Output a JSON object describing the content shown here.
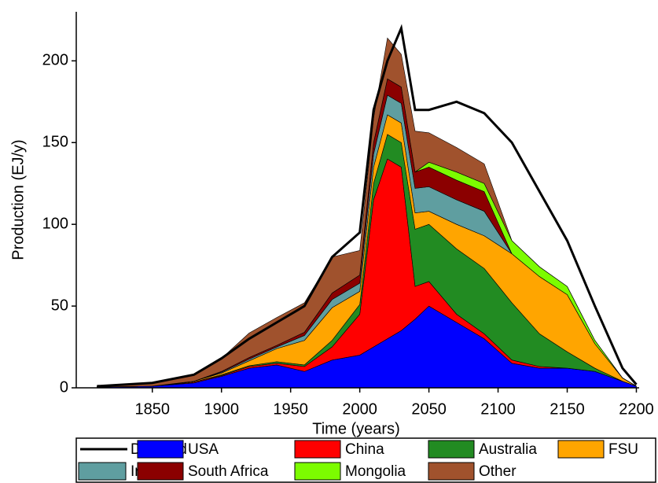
{
  "chart_data": {
    "type": "area",
    "stacked": true,
    "x_label": "Time (years)",
    "y_label": "Production (EJ/y)",
    "x": [
      1810,
      1850,
      1880,
      1900,
      1920,
      1940,
      1960,
      1980,
      2000,
      2010,
      2020,
      2030,
      2040,
      2050,
      2070,
      2090,
      2110,
      2130,
      2150,
      2170,
      2190,
      2200
    ],
    "xlim": [
      1795,
      2202
    ],
    "xticks": [
      1850,
      1900,
      1950,
      2000,
      2050,
      2100,
      2150,
      2200
    ],
    "ylim": [
      0,
      230
    ],
    "yticks": [
      0,
      50,
      100,
      150,
      200
    ],
    "series": [
      {
        "name": "Demand",
        "color": "#000000",
        "kind": "line",
        "values": [
          1,
          3,
          8,
          18,
          30,
          40,
          50,
          80,
          95,
          170,
          200,
          220,
          170,
          170,
          175,
          168,
          150,
          120,
          90,
          50,
          12,
          2
        ]
      },
      {
        "name": "USA",
        "color": "#0000ff",
        "values": [
          0.5,
          1,
          3,
          7,
          12,
          14,
          10,
          17,
          20,
          25,
          30,
          35,
          42,
          50,
          40,
          30,
          15,
          12,
          12,
          10,
          4,
          1
        ]
      },
      {
        "name": "China",
        "color": "#ff0000",
        "values": [
          0,
          0,
          0.5,
          0.5,
          1,
          1,
          3,
          8,
          25,
          90,
          110,
          100,
          20,
          15,
          5,
          3,
          2,
          1,
          0,
          0,
          0,
          0
        ]
      },
      {
        "name": "Australia",
        "color": "#228b22",
        "values": [
          0,
          0,
          0,
          0.5,
          0.5,
          1,
          1,
          4,
          6,
          10,
          15,
          15,
          35,
          35,
          40,
          40,
          35,
          20,
          10,
          2,
          0,
          0
        ]
      },
      {
        "name": "FSU",
        "color": "#ffa500",
        "values": [
          0,
          0,
          0.5,
          1,
          3,
          8,
          15,
          20,
          8,
          10,
          12,
          12,
          10,
          8,
          15,
          20,
          30,
          35,
          35,
          15,
          2,
          0
        ]
      },
      {
        "name": "India",
        "color": "#5f9ea0",
        "values": [
          0,
          0,
          0,
          0.5,
          1,
          1,
          3,
          5,
          5,
          8,
          12,
          12,
          15,
          15,
          15,
          15,
          0,
          0,
          0,
          0,
          0,
          0
        ]
      },
      {
        "name": "South Africa",
        "color": "#8b0000",
        "values": [
          0,
          0,
          0,
          0.5,
          1,
          1,
          2,
          4,
          5,
          7,
          10,
          10,
          10,
          12,
          12,
          12,
          0,
          0,
          0,
          0,
          0,
          0
        ]
      },
      {
        "name": "Mongolia",
        "color": "#7cfc00",
        "values": [
          0,
          0,
          0,
          0,
          0,
          0,
          0,
          0,
          0,
          0,
          0,
          0,
          0,
          3,
          5,
          5,
          8,
          6,
          5,
          2,
          0,
          0
        ]
      },
      {
        "name": "Other",
        "color": "#a0522d",
        "values": [
          0.5,
          2,
          4,
          8,
          15,
          17,
          18,
          22,
          15,
          15,
          25,
          20,
          25,
          18,
          15,
          12,
          0,
          0,
          0,
          0,
          0,
          0
        ]
      }
    ]
  }
}
